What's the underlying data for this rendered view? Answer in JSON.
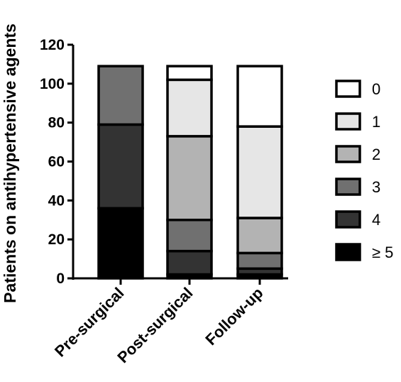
{
  "chart_data": {
    "type": "bar",
    "stacked": true,
    "title": "",
    "xlabel": "",
    "ylabel": "Patients on antihypertensive agents",
    "ylim": [
      0,
      120
    ],
    "yticks": [
      0,
      20,
      40,
      60,
      80,
      100,
      120
    ],
    "grid": false,
    "legend_position": "right",
    "categories": [
      "Pre-surgical",
      "Post-surgical",
      "Follow-up"
    ],
    "series": [
      {
        "name": "≥ 5",
        "color": "#000000",
        "values": [
          36,
          2,
          2
        ]
      },
      {
        "name": "4",
        "color": "#333333",
        "values": [
          43,
          12,
          3
        ]
      },
      {
        "name": "3",
        "color": "#707070",
        "values": [
          30,
          16,
          8
        ]
      },
      {
        "name": "2",
        "color": "#b3b3b3",
        "values": [
          0,
          43,
          18
        ]
      },
      {
        "name": "1",
        "color": "#e6e6e6",
        "values": [
          0,
          29,
          47
        ]
      },
      {
        "name": "0",
        "color": "#ffffff",
        "values": [
          0,
          7,
          31
        ]
      }
    ]
  }
}
